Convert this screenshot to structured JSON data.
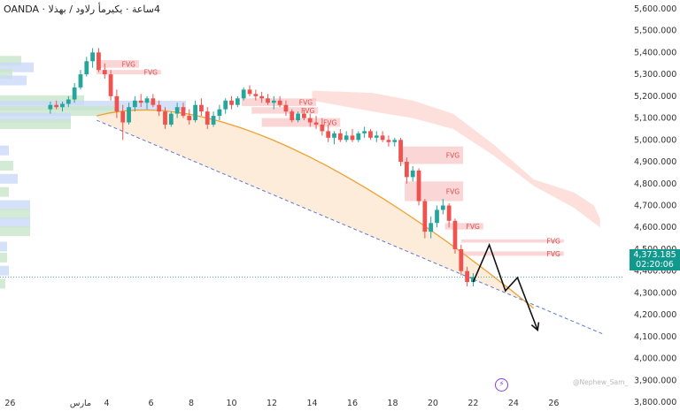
{
  "header": {
    "title": "4ساعة · يكيرمأ رلاود / بهذلا · OANDA"
  },
  "price_badge": {
    "price": "4,373.185",
    "countdown": "02:20:06"
  },
  "watermark": "@Nephew_Sam_",
  "logo_icon": "lightning-bolt-icon",
  "colors": {
    "up": "#26a69a",
    "down": "#ef5350",
    "fvg": "#f7a5a5",
    "arc": "#f0a030",
    "trendline": "#5b7bd6",
    "current_price_line": "#11998e",
    "accent_badge": "#11998e"
  },
  "fvg_label": "FVG",
  "chart_data": {
    "type": "candlestick",
    "instrument": "OANDA XAUUSD",
    "timeframe": "4h",
    "x_ticks": [
      "26",
      "مارس",
      "4",
      "6",
      "8",
      "10",
      "12",
      "14",
      "16",
      "18",
      "20",
      "22",
      "24",
      "26"
    ],
    "y_ticks": [
      3800000,
      3900000,
      4000000,
      4100000,
      4200000,
      4300000,
      4400000,
      4500000,
      4600000,
      4700000,
      4800000,
      4900000,
      5000000,
      5100000,
      5200000,
      5300000,
      5400000,
      5500000,
      5600000
    ],
    "y_tick_labels": [
      "3,800.000",
      "3,900.000",
      "4,000.000",
      "4,100.000",
      "4,200.000",
      "4,300.000",
      "4,400.000",
      "4,500.000",
      "4,600.000",
      "4,700.000",
      "4,800.000",
      "4,900.000",
      "5,000.000",
      "5,100.000",
      "5,200.000",
      "5,300.000",
      "5,400.000",
      "5,500.000",
      "5,600.000"
    ],
    "ylim": [
      3760000,
      5640000
    ],
    "xlim": [
      -1.5,
      29.5
    ],
    "last_price": 4373185,
    "candles": [
      {
        "d": 1.0,
        "o": 5140,
        "h": 5175,
        "l": 5120,
        "c": 5160
      },
      {
        "d": 1.3,
        "o": 5160,
        "h": 5180,
        "l": 5140,
        "c": 5150
      },
      {
        "d": 1.6,
        "o": 5150,
        "h": 5175,
        "l": 5130,
        "c": 5165
      },
      {
        "d": 1.9,
        "o": 5165,
        "h": 5200,
        "l": 5150,
        "c": 5185
      },
      {
        "d": 2.2,
        "o": 5185,
        "h": 5260,
        "l": 5170,
        "c": 5240
      },
      {
        "d": 2.5,
        "o": 5240,
        "h": 5320,
        "l": 5230,
        "c": 5300
      },
      {
        "d": 2.8,
        "o": 5300,
        "h": 5380,
        "l": 5290,
        "c": 5360
      },
      {
        "d": 3.1,
        "o": 5360,
        "h": 5420,
        "l": 5330,
        "c": 5400
      },
      {
        "d": 3.4,
        "o": 5400,
        "h": 5420,
        "l": 5310,
        "c": 5320
      },
      {
        "d": 3.7,
        "o": 5320,
        "h": 5350,
        "l": 5280,
        "c": 5300
      },
      {
        "d": 4.0,
        "o": 5300,
        "h": 5320,
        "l": 5180,
        "c": 5200
      },
      {
        "d": 4.3,
        "o": 5200,
        "h": 5230,
        "l": 5100,
        "c": 5130
      },
      {
        "d": 4.6,
        "o": 5130,
        "h": 5160,
        "l": 5000,
        "c": 5080
      },
      {
        "d": 4.9,
        "o": 5080,
        "h": 5170,
        "l": 5070,
        "c": 5150
      },
      {
        "d": 5.2,
        "o": 5150,
        "h": 5200,
        "l": 5130,
        "c": 5180
      },
      {
        "d": 5.5,
        "o": 5180,
        "h": 5210,
        "l": 5150,
        "c": 5170
      },
      {
        "d": 5.8,
        "o": 5170,
        "h": 5200,
        "l": 5140,
        "c": 5190
      },
      {
        "d": 6.1,
        "o": 5190,
        "h": 5210,
        "l": 5150,
        "c": 5160
      },
      {
        "d": 6.4,
        "o": 5160,
        "h": 5180,
        "l": 5110,
        "c": 5130
      },
      {
        "d": 6.7,
        "o": 5130,
        "h": 5150,
        "l": 5050,
        "c": 5070
      },
      {
        "d": 7.0,
        "o": 5070,
        "h": 5130,
        "l": 5060,
        "c": 5120
      },
      {
        "d": 7.3,
        "o": 5120,
        "h": 5170,
        "l": 5100,
        "c": 5150
      },
      {
        "d": 7.6,
        "o": 5150,
        "h": 5170,
        "l": 5100,
        "c": 5110
      },
      {
        "d": 7.9,
        "o": 5110,
        "h": 5140,
        "l": 5070,
        "c": 5090
      },
      {
        "d": 8.2,
        "o": 5090,
        "h": 5180,
        "l": 5080,
        "c": 5160
      },
      {
        "d": 8.5,
        "o": 5160,
        "h": 5190,
        "l": 5110,
        "c": 5130
      },
      {
        "d": 8.8,
        "o": 5130,
        "h": 5150,
        "l": 5050,
        "c": 5070
      },
      {
        "d": 9.1,
        "o": 5070,
        "h": 5130,
        "l": 5060,
        "c": 5110
      },
      {
        "d": 9.4,
        "o": 5110,
        "h": 5160,
        "l": 5090,
        "c": 5140
      },
      {
        "d": 9.7,
        "o": 5140,
        "h": 5190,
        "l": 5120,
        "c": 5180
      },
      {
        "d": 10.0,
        "o": 5180,
        "h": 5200,
        "l": 5140,
        "c": 5160
      },
      {
        "d": 10.3,
        "o": 5160,
        "h": 5200,
        "l": 5150,
        "c": 5190
      },
      {
        "d": 10.6,
        "o": 5190,
        "h": 5240,
        "l": 5180,
        "c": 5230
      },
      {
        "d": 10.9,
        "o": 5230,
        "h": 5250,
        "l": 5200,
        "c": 5210
      },
      {
        "d": 11.2,
        "o": 5210,
        "h": 5230,
        "l": 5180,
        "c": 5200
      },
      {
        "d": 11.5,
        "o": 5200,
        "h": 5220,
        "l": 5170,
        "c": 5190
      },
      {
        "d": 11.8,
        "o": 5190,
        "h": 5210,
        "l": 5160,
        "c": 5170
      },
      {
        "d": 12.1,
        "o": 5170,
        "h": 5200,
        "l": 5140,
        "c": 5180
      },
      {
        "d": 12.4,
        "o": 5180,
        "h": 5200,
        "l": 5150,
        "c": 5160
      },
      {
        "d": 12.7,
        "o": 5160,
        "h": 5180,
        "l": 5110,
        "c": 5130
      },
      {
        "d": 13.0,
        "o": 5130,
        "h": 5140,
        "l": 5080,
        "c": 5090
      },
      {
        "d": 13.3,
        "o": 5090,
        "h": 5130,
        "l": 5080,
        "c": 5120
      },
      {
        "d": 13.6,
        "o": 5120,
        "h": 5140,
        "l": 5090,
        "c": 5100
      },
      {
        "d": 13.9,
        "o": 5100,
        "h": 5120,
        "l": 5060,
        "c": 5080
      },
      {
        "d": 14.2,
        "o": 5080,
        "h": 5110,
        "l": 5050,
        "c": 5070
      },
      {
        "d": 14.5,
        "o": 5070,
        "h": 5100,
        "l": 5020,
        "c": 5040
      },
      {
        "d": 14.8,
        "o": 5040,
        "h": 5070,
        "l": 4990,
        "c": 5010
      },
      {
        "d": 15.1,
        "o": 5010,
        "h": 5040,
        "l": 4980,
        "c": 5030
      },
      {
        "d": 15.4,
        "o": 5030,
        "h": 5050,
        "l": 4990,
        "c": 5000
      },
      {
        "d": 15.7,
        "o": 5000,
        "h": 5040,
        "l": 4990,
        "c": 5020
      },
      {
        "d": 16.0,
        "o": 5020,
        "h": 5050,
        "l": 4990,
        "c": 5000
      },
      {
        "d": 16.3,
        "o": 5000,
        "h": 5040,
        "l": 4990,
        "c": 5030
      },
      {
        "d": 16.6,
        "o": 5030,
        "h": 5060,
        "l": 5010,
        "c": 5040
      },
      {
        "d": 16.9,
        "o": 5040,
        "h": 5050,
        "l": 5000,
        "c": 5010
      },
      {
        "d": 17.2,
        "o": 5010,
        "h": 5040,
        "l": 4990,
        "c": 5020
      },
      {
        "d": 17.5,
        "o": 5020,
        "h": 5040,
        "l": 4990,
        "c": 5000
      },
      {
        "d": 17.8,
        "o": 5000,
        "h": 5020,
        "l": 4970,
        "c": 4990
      },
      {
        "d": 18.1,
        "o": 4990,
        "h": 5010,
        "l": 4970,
        "c": 5000
      },
      {
        "d": 18.4,
        "o": 5000,
        "h": 5010,
        "l": 4880,
        "c": 4900
      },
      {
        "d": 18.7,
        "o": 4900,
        "h": 4920,
        "l": 4800,
        "c": 4830
      },
      {
        "d": 19.0,
        "o": 4830,
        "h": 4880,
        "l": 4810,
        "c": 4860
      },
      {
        "d": 19.3,
        "o": 4860,
        "h": 4870,
        "l": 4700,
        "c": 4720
      },
      {
        "d": 19.6,
        "o": 4720,
        "h": 4730,
        "l": 4550,
        "c": 4580
      },
      {
        "d": 19.9,
        "o": 4580,
        "h": 4650,
        "l": 4550,
        "c": 4620
      },
      {
        "d": 20.2,
        "o": 4620,
        "h": 4700,
        "l": 4600,
        "c": 4680
      },
      {
        "d": 20.5,
        "o": 4680,
        "h": 4730,
        "l": 4660,
        "c": 4700
      },
      {
        "d": 20.8,
        "o": 4700,
        "h": 4710,
        "l": 4600,
        "c": 4630
      },
      {
        "d": 21.1,
        "o": 4630,
        "h": 4640,
        "l": 4480,
        "c": 4500
      },
      {
        "d": 21.4,
        "o": 4500,
        "h": 4520,
        "l": 4380,
        "c": 4400
      },
      {
        "d": 21.7,
        "o": 4400,
        "h": 4420,
        "l": 4330,
        "c": 4350
      },
      {
        "d": 22.0,
        "o": 4350,
        "h": 4390,
        "l": 4330,
        "c": 4373
      }
    ],
    "fvg_zones": [
      {
        "d0": 3.3,
        "d1": 5.4,
        "y0": 5330,
        "y1": 5365
      },
      {
        "d0": 3.3,
        "d1": 6.5,
        "y0": 5300,
        "y1": 5320
      },
      {
        "d0": 10.5,
        "d1": 14.2,
        "y0": 5155,
        "y1": 5190
      },
      {
        "d0": 11.0,
        "d1": 14.3,
        "y0": 5120,
        "y1": 5150
      },
      {
        "d0": 11.5,
        "d1": 15.4,
        "y0": 5060,
        "y1": 5100
      },
      {
        "d0": 18.4,
        "d1": 21.5,
        "y0": 4890,
        "y1": 4970
      },
      {
        "d0": 18.6,
        "d1": 21.5,
        "y0": 4720,
        "y1": 4810
      },
      {
        "d0": 20.6,
        "d1": 22.5,
        "y0": 4590,
        "y1": 4620
      },
      {
        "d0": 21.4,
        "d1": 26.5,
        "y0": 4530,
        "y1": 4545
      },
      {
        "d0": 21.4,
        "d1": 26.5,
        "y0": 4470,
        "y1": 4490
      }
    ],
    "projection_path": [
      [
        22.0,
        4350
      ],
      [
        22.8,
        4520
      ],
      [
        23.6,
        4310
      ],
      [
        24.2,
        4370
      ],
      [
        25.2,
        4130
      ]
    ],
    "trendline": [
      [
        3.3,
        5090
      ],
      [
        28.5,
        4110
      ]
    ],
    "arc": {
      "start": [
        3.3,
        5110
      ],
      "peak": [
        10.5,
        5225
      ],
      "end": [
        25.0,
        4230
      ]
    }
  }
}
